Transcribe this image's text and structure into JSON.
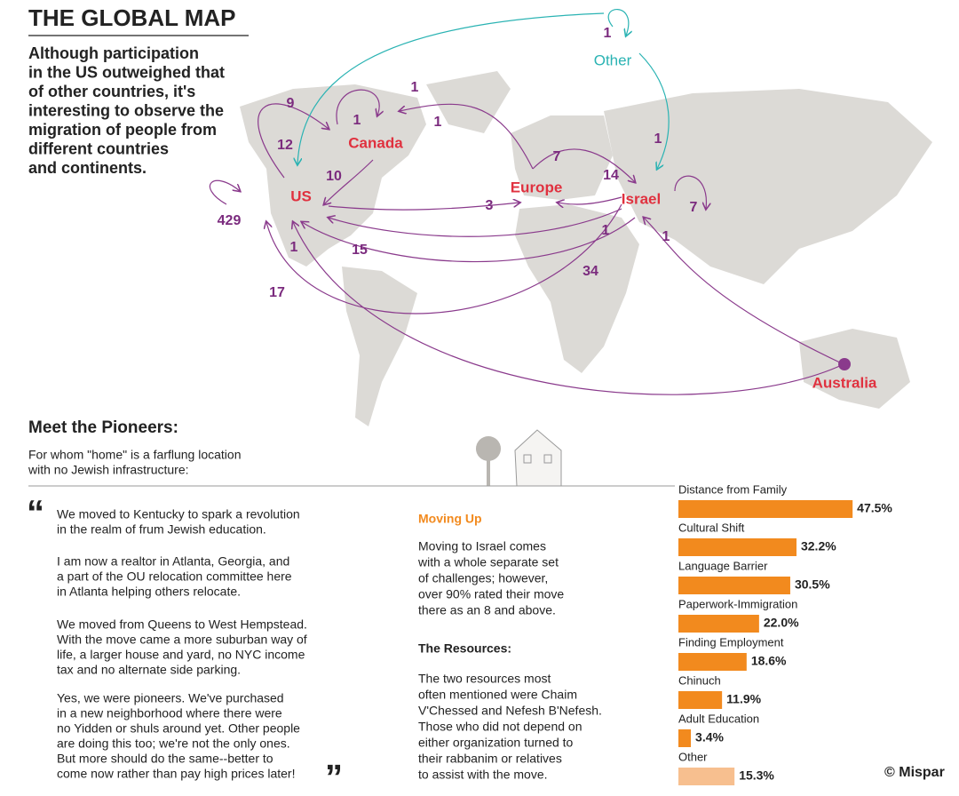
{
  "header": {
    "title": "THE GLOBAL MAP",
    "intro": [
      "Although participation",
      "in the US outweighed that",
      "of other countries, it's",
      "interesting to observe the",
      "migration of people from",
      "different countries",
      "and continents."
    ]
  },
  "map": {
    "places": [
      "US",
      "Canada",
      "Europe",
      "Israel",
      "Other",
      "Australia"
    ],
    "counts": [
      1,
      9,
      1,
      1,
      1,
      12,
      10,
      429,
      7,
      14,
      1,
      7,
      3,
      15,
      1,
      1,
      1,
      34,
      17
    ]
  },
  "pioneers": {
    "title": "Meet the Pioneers:",
    "subtitle": [
      "For whom \"home\" is a farflung location",
      "with no Jewish infrastructure:"
    ],
    "quotes": [
      [
        "We moved to Kentucky to spark a revolution",
        "in the realm of frum Jewish education."
      ],
      [
        "I am now a realtor in Atlanta, Georgia, and",
        "a part of the OU relocation committee here",
        "in Atlanta helping others relocate."
      ],
      [
        "We moved from Queens to West Hempstead.",
        "With the move came a more suburban way of",
        "life, a larger house and yard, no NYC income",
        "tax and no alternate side parking."
      ],
      [
        "Yes, we were pioneers. We've purchased",
        "in a new neighborhood where there were",
        "no Yidden or shuls around yet. Other people",
        "are doing this too; we're not the only ones.",
        "But more should do the same--better to",
        "come now rather than pay high prices later!"
      ]
    ]
  },
  "moving_up": {
    "title": "Moving Up",
    "text": [
      "Moving to Israel comes",
      "with a whole separate set",
      "of challenges; however,",
      "over 90% rated their move",
      "there as an 8 and above."
    ]
  },
  "resources": {
    "title": "The Resources:",
    "text": [
      "The two resources most",
      "often mentioned were Chaim",
      "V'Chessed  and Nefesh B'Nefesh.",
      "Those who did not depend on",
      "either organization  turned to",
      "their rabbanim or relatives",
      "to assist with the move."
    ]
  },
  "chart_data": {
    "type": "bar",
    "categories": [
      "Distance from Family",
      "Cultural Shift",
      "Language Barrier",
      "Paperwork-Immigration",
      "Finding Employment",
      "Chinuch",
      "Adult Education",
      "Other"
    ],
    "values": [
      47.5,
      32.2,
      30.5,
      22.0,
      18.6,
      11.9,
      3.4,
      15.3
    ],
    "value_labels": [
      "47.5%",
      "32.2%",
      "30.5%",
      "22.0%",
      "18.6%",
      "11.9%",
      "3.4%",
      "15.3%"
    ],
    "colors": [
      "#f28a1e",
      "#f28a1e",
      "#f28a1e",
      "#f28a1e",
      "#f28a1e",
      "#f28a1e",
      "#f28a1e",
      "#f7bf8f"
    ]
  },
  "credit": "© Mispar"
}
